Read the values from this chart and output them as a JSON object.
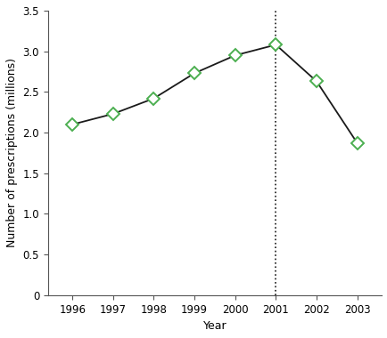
{
  "years": [
    1996,
    1997,
    1998,
    1999,
    2000,
    2001,
    2002,
    2003
  ],
  "prescriptions": [
    2.1,
    2.23,
    2.42,
    2.73,
    2.95,
    3.08,
    2.63,
    1.87
  ],
  "line_color": "#1a1a1a",
  "marker_color": "#4caf50",
  "marker_face_color": "#ffffff",
  "marker_style": "D",
  "marker_size": 7,
  "line_width": 1.3,
  "dotted_line_x": 2001,
  "dotted_line_color": "#1a1a1a",
  "xlabel": "Year",
  "ylabel": "Number of prescriptions (millions)",
  "ylim": [
    0,
    3.5
  ],
  "xlim": [
    1995.4,
    2003.6
  ],
  "yticks": [
    0,
    0.5,
    1.0,
    1.5,
    2.0,
    2.5,
    3.0,
    3.5
  ],
  "xticks": [
    1996,
    1997,
    1998,
    1999,
    2000,
    2001,
    2002,
    2003
  ],
  "background_color": "#ffffff",
  "label_fontsize": 9,
  "tick_fontsize": 8.5
}
